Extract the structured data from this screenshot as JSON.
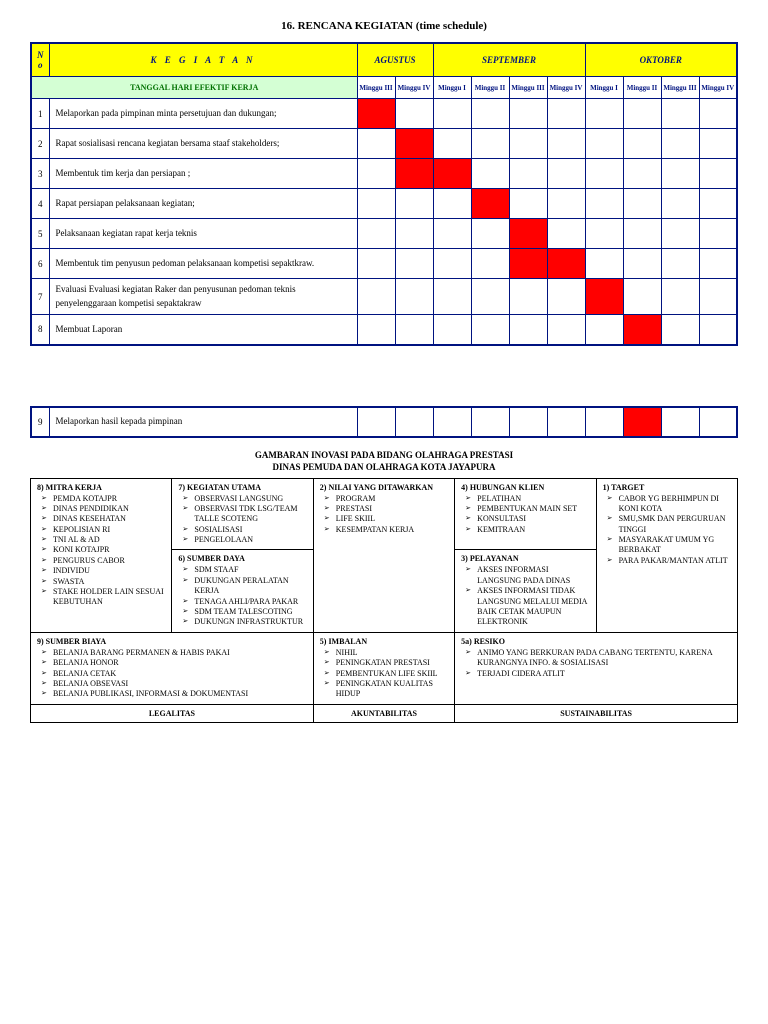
{
  "title": "16. RENCANA KEGIATAN (time schedule)",
  "schedule": {
    "header_no": "N\no",
    "header_kegiatan": "K E G I A T A N",
    "months": [
      "AGUSTUS",
      "SEPTEMBER",
      "OKTOBER"
    ],
    "tanggal_label": "TANGGAL HARI EFEKTIF KERJA",
    "weeks": [
      "Minggu III",
      "Minggu IV",
      "Minggu I",
      "Minggu II",
      "Minggu III",
      "Minggu IV",
      "Minggu I",
      "Minggu II",
      "Minggu III",
      "Minggu IV"
    ],
    "rows": [
      {
        "no": "1",
        "keg": "Melaporkan pada pimpinan minta persetujuan dan dukungan;",
        "cells": [
          1,
          0,
          0,
          0,
          0,
          0,
          0,
          0,
          0,
          0
        ]
      },
      {
        "no": "2",
        "keg": "Rapat sosialisasi rencana kegiatan bersama staaf stakeholders;",
        "cells": [
          0,
          1,
          0,
          0,
          0,
          0,
          0,
          0,
          0,
          0
        ]
      },
      {
        "no": "3",
        "keg": "Membentuk tim kerja dan persiapan ;",
        "cells": [
          0,
          1,
          1,
          0,
          0,
          0,
          0,
          0,
          0,
          0
        ]
      },
      {
        "no": "4",
        "keg": "Rapat persiapan pelaksanaan kegiatan;",
        "cells": [
          0,
          0,
          0,
          1,
          0,
          0,
          0,
          0,
          0,
          0
        ]
      },
      {
        "no": "5",
        "keg": "Pelaksanaan kegiatan rapat kerja teknis",
        "cells": [
          0,
          0,
          0,
          0,
          1,
          0,
          0,
          0,
          0,
          0
        ]
      },
      {
        "no": "6",
        "keg": "Membentuk tim penyusun pedoman pelaksanaan kompetisi sepaktkraw.",
        "cells": [
          0,
          0,
          0,
          0,
          1,
          1,
          0,
          0,
          0,
          0
        ]
      },
      {
        "no": "7",
        "keg": "Evaluasi Evaluasi kegiatan Raker dan penyusunan pedoman teknis penyelenggaraan kompetisi sepaktakraw",
        "cells": [
          0,
          0,
          0,
          0,
          0,
          0,
          1,
          0,
          0,
          0
        ]
      },
      {
        "no": "8",
        "keg": "Membuat Laporan",
        "cells": [
          0,
          0,
          0,
          0,
          0,
          0,
          0,
          1,
          0,
          0
        ]
      }
    ],
    "extra_row": {
      "no": "9",
      "keg": "Melaporkan hasil kepada pimpinan",
      "cells": [
        0,
        0,
        0,
        0,
        0,
        0,
        0,
        1,
        0,
        0
      ]
    }
  },
  "canvas": {
    "title1": "GAMBARAN INOVASI PADA BIDANG OLAHRAGA PRESTASI",
    "title2": "DINAS PEMUDA DAN OLAHRAGA KOTA JAYAPURA",
    "b8": {
      "t": "8) MITRA KERJA",
      "items": [
        "PEMDA KOTAJPR",
        "DINAS PENDIDIKAN",
        "DINAS KESEHATAN",
        "KEPOLISIAN RI",
        "TNI AL & AD",
        "KONI KOTAJPR",
        "PENGURUS CABOR",
        "INDIVIDU",
        "SWASTA",
        "STAKE HOLDER LAIN SESUAI KEBUTUHAN"
      ]
    },
    "b7": {
      "t": "7) KEGIATAN UTAMA",
      "items": [
        "OBSERVASI LANGSUNG",
        "OBSERVASI TDK LSG/TEAM TALLE SCOTENG",
        "SOSIALISASI",
        "PENGELOLAAN"
      ]
    },
    "b6": {
      "t": "6) SUMBER DAYA",
      "items": [
        "SDM STAAF",
        "DUKUNGAN PERALATAN KERJA",
        "TENAGA AHLI/PARA PAKAR",
        "SDM TEAM TALESCOTING",
        "DUKUNGN INFRASTRUKTUR"
      ]
    },
    "b2": {
      "t": "2) NILAI YANG DITAWARKAN",
      "items": [
        "PROGRAM",
        "PRESTASI",
        "LIFE SKIIL",
        "KESEMPATAN KERJA"
      ]
    },
    "b4": {
      "t": "4) HUBUNGAN KLIEN",
      "items": [
        "PELATIHAN",
        "PEMBENTUKAN MAIN SET",
        "KONSULTASI",
        "KEMITRAAN"
      ]
    },
    "b3": {
      "t": "3) PELAYANAN",
      "items": [
        "AKSES INFORMASI LANGSUNG PADA DINAS",
        "AKSES INFORMASI TIDAK LANGSUNG MELALUI MEDIA BAIK CETAK MAUPUN ELEKTRONIK"
      ]
    },
    "b1": {
      "t": "1) TARGET",
      "items": [
        "CABOR YG BERHIMPUN DI KONI KOTA",
        "SMU,SMK DAN PERGURUAN TINGGI",
        "MASYARAKAT UMUM YG BERBAKAT",
        "PARA PAKAR/MANTAN ATLIT"
      ]
    },
    "b9": {
      "t": "9) SUMBER BIAYA",
      "items": [
        "BELANJA BARANG PERMANEN & HABIS PAKAI",
        "BELANJA HONOR",
        "BELANJA CETAK",
        "BELANJA OBSEVASI",
        "BELANJA PUBLIKASI, INFORMASI & DOKUMENTASI"
      ]
    },
    "b5": {
      "t": "5) IMBALAN",
      "items": [
        "NIHIL",
        "PENINGKATAN PRESTASI",
        "PEMBENTUKAN LIFE SKIIL",
        "PENINGKATAN KUALITAS HIDUP"
      ]
    },
    "b5a": {
      "t": "5a) RESIKO",
      "items": [
        "ANIMO YANG BERKURAN PADA CABANG TERTENTU, KARENA KURANGNYA INFO. & SOSIALISASI",
        "TERJADI CIDERA ATLIT"
      ]
    },
    "bottom": {
      "a": "LEGALITAS",
      "b": "AKUNTABILITAS",
      "c": "SUSTAINABILITAS"
    }
  }
}
